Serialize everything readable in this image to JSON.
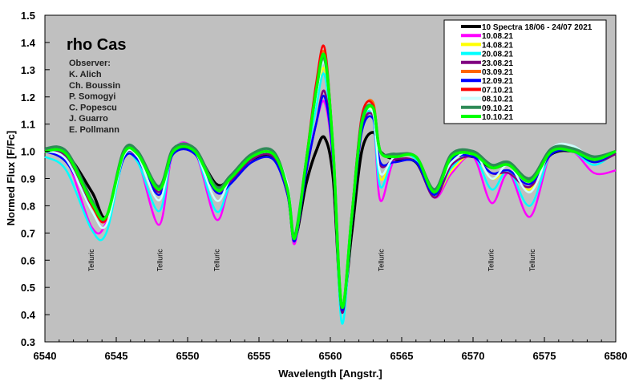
{
  "chart_data": {
    "type": "line",
    "title": "rho Cas",
    "xlabel": "Wavelength [Angstr.]",
    "ylabel": "Normed Flux [F/Fc]",
    "xlim": [
      6540,
      6580
    ],
    "ylim": [
      0.3,
      1.5
    ],
    "xticks": [
      6540,
      6545,
      6550,
      6555,
      6560,
      6565,
      6570,
      6575,
      6580
    ],
    "yticks": [
      0.3,
      0.4,
      0.5,
      0.6,
      0.7,
      0.8,
      0.9,
      1.0,
      1.1,
      1.2,
      1.3,
      1.4,
      1.5
    ],
    "grid": false,
    "background": "#c0c0c0",
    "legend_position": "top-right",
    "observers_title": "Observer:",
    "observers": [
      "K. Alich",
      "Ch. Boussin",
      "P. Somogyi",
      "C. Popescu",
      "J. Guarro",
      "E. Pollmann"
    ],
    "annotations": [
      {
        "text": "Telluric",
        "x": 6543.2,
        "y": 0.6
      },
      {
        "text": "Telluric",
        "x": 6548.0,
        "y": 0.6
      },
      {
        "text": "Telluric",
        "x": 6552.0,
        "y": 0.6
      },
      {
        "text": "Telluric",
        "x": 6563.5,
        "y": 0.6
      },
      {
        "text": "Telluric",
        "x": 6571.2,
        "y": 0.6
      },
      {
        "text": "Telluric",
        "x": 6574.1,
        "y": 0.6
      }
    ],
    "x": [
      6540,
      6541.5,
      6543.3,
      6544.3,
      6545.5,
      6546.5,
      6548,
      6549,
      6550.5,
      6552,
      6553,
      6554.5,
      6556,
      6557,
      6557.5,
      6558.3,
      6559,
      6559.6,
      6560.2,
      6560.8,
      6561.5,
      6562.2,
      6563,
      6563.5,
      6564.5,
      6566,
      6567.3,
      6568.5,
      6570,
      6571.3,
      6572.5,
      6574,
      6575.5,
      6577,
      6578.5,
      6580
    ],
    "series": [
      {
        "name": "10 Spectra 18/06 - 24/07 2021",
        "color": "#000000",
        "values": [
          1.0,
          0.99,
          0.85,
          0.76,
          0.98,
          0.99,
          0.87,
          1.0,
          1.0,
          0.88,
          0.9,
          0.97,
          0.98,
          0.86,
          0.68,
          0.88,
          1.0,
          1.05,
          0.9,
          0.43,
          0.7,
          1.0,
          1.07,
          1.0,
          0.97,
          0.96,
          0.84,
          0.97,
          0.98,
          0.94,
          0.95,
          0.9,
          0.99,
          1.0,
          0.97,
          1.0
        ]
      },
      {
        "name": "10.08.21",
        "color": "#ff00ff",
        "values": [
          1.0,
          0.97,
          0.72,
          0.74,
          0.98,
          0.97,
          0.73,
          1.0,
          1.0,
          0.75,
          0.88,
          0.97,
          0.99,
          0.85,
          0.66,
          0.94,
          1.1,
          1.18,
          0.95,
          0.41,
          0.74,
          1.08,
          1.12,
          0.82,
          0.97,
          0.97,
          0.83,
          0.92,
          0.98,
          0.81,
          0.92,
          0.76,
          1.0,
          1.0,
          0.92,
          0.93
        ]
      },
      {
        "name": "14.08.21",
        "color": "#ffff00",
        "values": [
          1.0,
          0.98,
          0.8,
          0.75,
          0.99,
          0.99,
          0.85,
          1.0,
          1.0,
          0.85,
          0.9,
          0.98,
          0.99,
          0.85,
          0.68,
          0.95,
          1.18,
          1.3,
          0.98,
          0.42,
          0.75,
          1.1,
          1.14,
          0.9,
          0.98,
          0.97,
          0.84,
          0.93,
          0.99,
          0.9,
          0.93,
          0.86,
          1.0,
          1.0,
          0.96,
          1.0
        ]
      },
      {
        "name": "20.08.21",
        "color": "#00ffff",
        "values": [
          0.98,
          0.93,
          0.71,
          0.7,
          0.97,
          0.96,
          0.78,
          1.0,
          1.0,
          0.78,
          0.88,
          0.97,
          0.98,
          0.84,
          0.67,
          0.95,
          1.16,
          1.28,
          0.97,
          0.37,
          0.74,
          1.1,
          1.12,
          0.87,
          0.98,
          0.97,
          0.84,
          0.94,
          0.99,
          0.86,
          0.93,
          0.8,
          1.0,
          1.0,
          0.95,
          1.0
        ]
      },
      {
        "name": "23.08.21",
        "color": "#800080",
        "values": [
          1.0,
          0.98,
          0.8,
          0.75,
          0.98,
          0.98,
          0.85,
          1.0,
          1.0,
          0.85,
          0.89,
          0.97,
          0.98,
          0.84,
          0.67,
          0.92,
          1.1,
          1.22,
          0.96,
          0.41,
          0.74,
          1.08,
          1.13,
          0.95,
          0.97,
          0.96,
          0.83,
          0.95,
          0.98,
          0.92,
          0.92,
          0.87,
          0.99,
          1.0,
          0.96,
          0.99
        ]
      },
      {
        "name": "03.09.21",
        "color": "#ff6600",
        "values": [
          1.0,
          0.99,
          0.8,
          0.75,
          0.99,
          0.99,
          0.86,
          1.0,
          1.0,
          0.86,
          0.9,
          0.98,
          0.99,
          0.85,
          0.68,
          0.96,
          1.24,
          1.36,
          1.0,
          0.43,
          0.77,
          1.12,
          1.18,
          1.0,
          0.99,
          0.98,
          0.85,
          0.98,
          1.0,
          0.94,
          0.95,
          0.89,
          1.0,
          1.01,
          0.97,
          1.0
        ]
      },
      {
        "name": "12.09.21",
        "color": "#0000ff",
        "values": [
          1.0,
          0.96,
          0.8,
          0.75,
          0.97,
          0.97,
          0.84,
          0.99,
          0.99,
          0.85,
          0.88,
          0.96,
          0.97,
          0.84,
          0.67,
          0.92,
          1.1,
          1.2,
          0.96,
          0.42,
          0.74,
          1.07,
          1.12,
          0.96,
          0.96,
          0.96,
          0.84,
          0.97,
          0.98,
          0.92,
          0.93,
          0.88,
          0.99,
          1.0,
          0.96,
          1.0
        ]
      },
      {
        "name": "07.10.21",
        "color": "#ff0000",
        "values": [
          1.0,
          0.99,
          0.8,
          0.75,
          0.99,
          0.99,
          0.86,
          1.0,
          1.0,
          0.86,
          0.9,
          0.98,
          0.99,
          0.85,
          0.68,
          0.97,
          1.25,
          1.38,
          1.01,
          0.43,
          0.77,
          1.13,
          1.17,
          1.0,
          0.99,
          0.98,
          0.85,
          0.98,
          1.0,
          0.94,
          0.95,
          0.89,
          1.0,
          1.01,
          0.97,
          1.0
        ]
      },
      {
        "name": "08.10.21",
        "color": "#ccffff",
        "values": [
          1.0,
          0.97,
          0.78,
          0.73,
          0.98,
          0.98,
          0.82,
          1.01,
          1.0,
          0.82,
          0.9,
          0.98,
          0.99,
          0.88,
          0.7,
          0.96,
          1.2,
          1.32,
          0.99,
          0.44,
          0.76,
          1.1,
          1.14,
          0.92,
          0.98,
          0.98,
          0.86,
          0.96,
          1.0,
          0.9,
          0.95,
          0.85,
          1.01,
          1.02,
          0.97,
          1.0
        ]
      },
      {
        "name": "09.10.21",
        "color": "#2e8b57",
        "values": [
          1.01,
          1.0,
          0.82,
          0.76,
          1.0,
          1.0,
          0.87,
          1.01,
          1.01,
          0.87,
          0.91,
          0.99,
          1.0,
          0.86,
          0.69,
          0.96,
          1.22,
          1.34,
          1.0,
          0.43,
          0.76,
          1.11,
          1.16,
          1.0,
          0.99,
          0.98,
          0.86,
          0.99,
          1.0,
          0.95,
          0.96,
          0.9,
          1.01,
          1.01,
          0.98,
          1.0
        ]
      },
      {
        "name": "10.10.21",
        "color": "#00ff00",
        "values": [
          1.0,
          0.99,
          0.81,
          0.76,
          0.99,
          0.99,
          0.86,
          1.0,
          1.0,
          0.86,
          0.9,
          0.98,
          0.99,
          0.86,
          0.68,
          0.96,
          1.22,
          1.35,
          1.0,
          0.43,
          0.76,
          1.1,
          1.16,
          1.0,
          0.98,
          0.98,
          0.85,
          0.98,
          0.99,
          0.94,
          0.95,
          0.89,
          1.0,
          1.0,
          0.97,
          1.0
        ]
      }
    ]
  }
}
